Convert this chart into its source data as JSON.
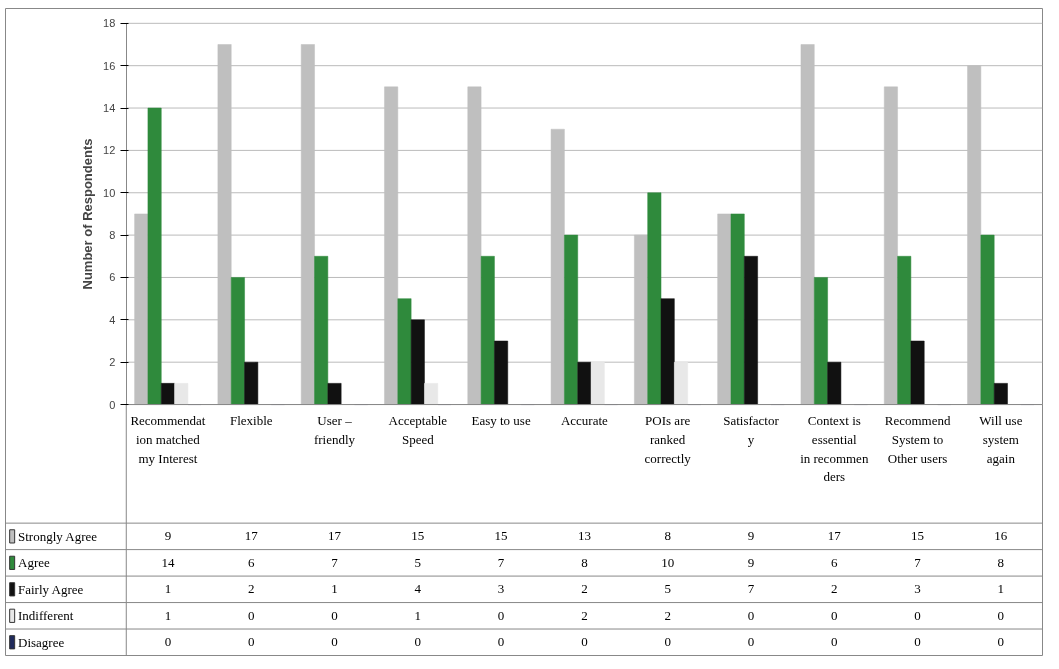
{
  "chart_data": {
    "type": "bar",
    "ylabel": "Number of Respondents",
    "categories": [
      "Recommendation matched my Interest",
      "Flexible",
      "User – friendly",
      "Acceptable Speed",
      "Easy to use",
      "Accurate",
      "POIs are ranked correctly",
      "Satisfactory",
      "Context is essential in recommenders",
      "Recommend System to Other users",
      "Will use system again"
    ],
    "series": [
      {
        "name": "Strongly Agree",
        "color": "#bfbfbf",
        "values": [
          9,
          17,
          17,
          15,
          15,
          13,
          8,
          9,
          17,
          15,
          16
        ]
      },
      {
        "name": "Agree",
        "color": "#2f8a3c",
        "values": [
          14,
          6,
          7,
          5,
          7,
          8,
          10,
          9,
          6,
          7,
          8
        ]
      },
      {
        "name": "Fairly Agree",
        "color": "#111111",
        "values": [
          1,
          2,
          1,
          4,
          3,
          2,
          5,
          7,
          2,
          3,
          1
        ]
      },
      {
        "name": "Indifferent",
        "color": "#e8e8e8",
        "values": [
          1,
          0,
          0,
          1,
          0,
          2,
          2,
          0,
          0,
          0,
          0
        ]
      },
      {
        "name": "Disagree",
        "color": "#1f2a5c",
        "values": [
          0,
          0,
          0,
          0,
          0,
          0,
          0,
          0,
          0,
          0,
          0
        ]
      }
    ],
    "ylim": [
      0,
      18
    ],
    "yticks": [
      0,
      2,
      4,
      6,
      8,
      10,
      12,
      14,
      16,
      18
    ],
    "grid": "y",
    "legend": "bottom",
    "data_labels": true
  }
}
